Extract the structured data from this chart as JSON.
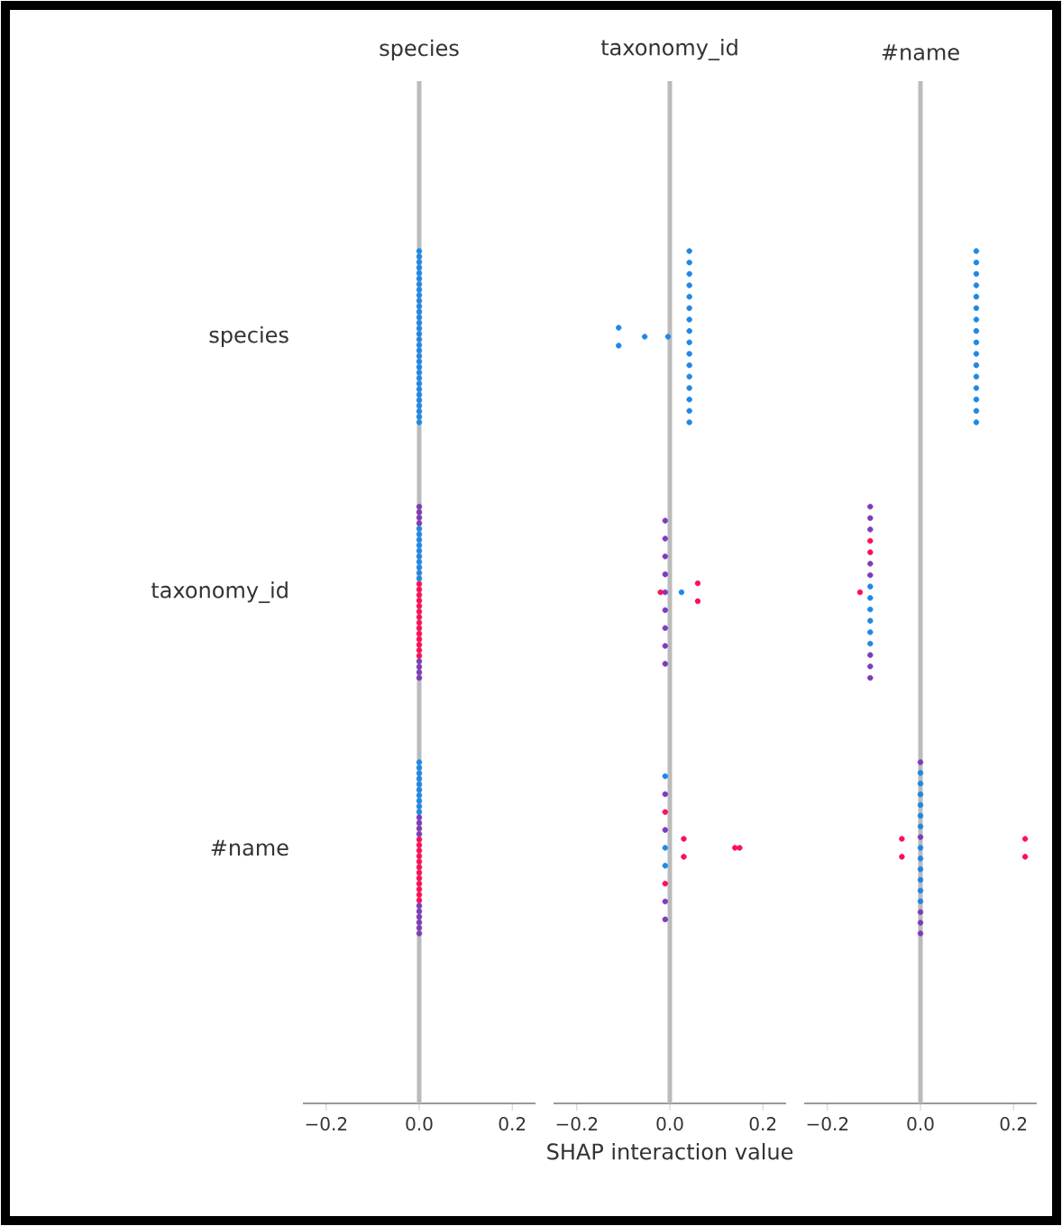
{
  "chart_data": [
    {
      "type": "scatter",
      "orientation": "horizontal",
      "title": "species",
      "categories": [
        "species",
        "taxonomy_id",
        "#name"
      ],
      "xlim": [
        -0.25,
        0.25
      ],
      "xticks": [
        {
          "value": -0.2,
          "label": "−0.2"
        },
        {
          "value": 0,
          "label": "0.0"
        },
        {
          "value": 0.2,
          "label": "0.2"
        }
      ],
      "marker": "circle",
      "ref_lines": [
        {
          "axis": "x",
          "value": 0,
          "color": "#bbbbbb"
        }
      ],
      "series": [
        {
          "x": [
            "species",
            "species",
            "species",
            "species",
            "species",
            "species",
            "species",
            "species",
            "species",
            "species",
            "species",
            "species",
            "species",
            "species",
            "species",
            "species",
            "species",
            "species",
            "species",
            "species",
            "species",
            "species",
            "species",
            "species",
            "species",
            "species",
            "species",
            "species",
            "species",
            "species",
            "species",
            "species",
            "taxonomy_id",
            "taxonomy_id",
            "taxonomy_id",
            "taxonomy_id",
            "taxonomy_id",
            "taxonomy_id",
            "taxonomy_id",
            "taxonomy_id",
            "taxonomy_id",
            "taxonomy_id",
            "taxonomy_id",
            "taxonomy_id",
            "taxonomy_id",
            "taxonomy_id",
            "taxonomy_id",
            "taxonomy_id",
            "taxonomy_id",
            "taxonomy_id",
            "taxonomy_id",
            "taxonomy_id",
            "taxonomy_id",
            "taxonomy_id",
            "taxonomy_id",
            "taxonomy_id",
            "taxonomy_id",
            "taxonomy_id",
            "taxonomy_id",
            "taxonomy_id",
            "taxonomy_id",
            "taxonomy_id",
            "taxonomy_id",
            "taxonomy_id",
            "#name",
            "#name",
            "#name",
            "#name",
            "#name",
            "#name",
            "#name",
            "#name",
            "#name",
            "#name",
            "#name",
            "#name",
            "#name",
            "#name",
            "#name",
            "#name",
            "#name",
            "#name",
            "#name",
            "#name",
            "#name",
            "#name",
            "#name",
            "#name",
            "#name",
            "#name",
            "#name",
            "#name",
            "#name",
            "#name",
            "#name",
            "#name"
          ],
          "values": [
            0,
            0,
            0,
            0,
            0,
            0,
            0,
            0,
            0,
            0,
            0,
            0,
            0,
            0,
            0,
            0,
            0,
            0,
            0,
            0,
            0,
            0,
            0,
            0,
            0,
            0,
            0,
            0,
            0,
            0,
            0,
            0,
            0,
            0,
            0,
            0,
            0,
            0,
            0,
            0,
            0,
            0,
            0,
            0,
            0,
            0,
            0,
            0,
            0,
            0,
            0,
            0,
            0,
            0,
            0,
            0,
            0,
            0,
            0,
            0,
            0,
            0,
            0,
            0,
            0,
            0,
            0,
            0,
            0,
            0,
            0,
            0,
            0,
            0,
            0,
            0,
            0,
            0,
            0,
            0,
            0,
            0,
            0,
            0,
            0,
            0,
            0,
            0,
            0,
            0,
            0,
            0,
            0,
            0,
            0,
            0
          ],
          "colors": [
            "#1e88e5",
            "#1e88e5",
            "#1e88e5",
            "#1e88e5",
            "#1e88e5",
            "#1e88e5",
            "#1e88e5",
            "#1e88e5",
            "#1e88e5",
            "#1e88e5",
            "#1e88e5",
            "#1e88e5",
            "#1e88e5",
            "#1e88e5",
            "#1e88e5",
            "#1e88e5",
            "#1e88e5",
            "#1e88e5",
            "#1e88e5",
            "#1e88e5",
            "#1e88e5",
            "#1e88e5",
            "#1e88e5",
            "#1e88e5",
            "#1e88e5",
            "#1e88e5",
            "#1e88e5",
            "#1e88e5",
            "#1e88e5",
            "#1e88e5",
            "#1e88e5",
            "#1e88e5",
            "#7e3bb8",
            "#7e3bb8",
            "#7e3bb8",
            "#7e3bb8",
            "#1e88e5",
            "#1e88e5",
            "#1e88e5",
            "#1e88e5",
            "#1e88e5",
            "#1e88e5",
            "#1e88e5",
            "#1e88e5",
            "#1e88e5",
            "#1e88e5",
            "#ff0d57",
            "#ff0d57",
            "#ff0d57",
            "#ff0d57",
            "#ff0d57",
            "#ff0d57",
            "#ff0d57",
            "#ff0d57",
            "#ff0d57",
            "#ff0d57",
            "#ff0d57",
            "#ff0d57",
            "#ff0d57",
            "#ff0d57",
            "#7e3bb8",
            "#7e3bb8",
            "#7e3bb8",
            "#7e3bb8",
            "#1e88e5",
            "#1e88e5",
            "#1e88e5",
            "#1e88e5",
            "#1e88e5",
            "#1e88e5",
            "#1e88e5",
            "#1e88e5",
            "#1e88e5",
            "#1e88e5",
            "#7e3bb8",
            "#7e3bb8",
            "#7e3bb8",
            "#7e3bb8",
            "#ff0d57",
            "#ff0d57",
            "#ff0d57",
            "#ff0d57",
            "#ff0d57",
            "#ff0d57",
            "#ff0d57",
            "#ff0d57",
            "#ff0d57",
            "#ff0d57",
            "#ff0d57",
            "#ff0d57",
            "#7e3bb8",
            "#7e3bb8",
            "#7e3bb8",
            "#7e3bb8",
            "#7e3bb8",
            "#7e3bb8"
          ]
        }
      ]
    },
    {
      "type": "scatter",
      "orientation": "horizontal",
      "title": "taxonomy_id",
      "xlabel": "SHAP interaction value",
      "categories": [
        "species",
        "taxonomy_id",
        "#name"
      ],
      "xlim": [
        -0.25,
        0.25
      ],
      "xticks": [
        {
          "value": -0.2,
          "label": "−0.2"
        },
        {
          "value": 0,
          "label": "0.0"
        },
        {
          "value": 0.2,
          "label": "0.2"
        }
      ],
      "tick_labels": "x",
      "marker": "circle",
      "ref_lines": [
        {
          "axis": "x",
          "value": 0,
          "color": "#bbbbbb"
        }
      ],
      "series": [
        {
          "x": [
            "species",
            "species",
            "species",
            "species",
            "species",
            "species",
            "species",
            "species",
            "species",
            "species",
            "species",
            "species",
            "species",
            "species",
            "species",
            "species",
            "species",
            "species",
            "species",
            "species",
            "taxonomy_id",
            "taxonomy_id",
            "taxonomy_id",
            "taxonomy_id",
            "taxonomy_id",
            "taxonomy_id",
            "taxonomy_id",
            "taxonomy_id",
            "taxonomy_id",
            "taxonomy_id",
            "taxonomy_id",
            "taxonomy_id",
            "taxonomy_id",
            "#name",
            "#name",
            "#name",
            "#name",
            "#name",
            "#name",
            "#name",
            "#name",
            "#name",
            "#name",
            "#name",
            "#name",
            "#name"
          ],
          "values": [
            -0.11,
            -0.11,
            -0.054,
            -0.004,
            0.042,
            0.042,
            0.042,
            0.042,
            0.042,
            0.042,
            0.042,
            0.042,
            0.042,
            0.042,
            0.042,
            0.042,
            0.042,
            0.042,
            0.042,
            0.042,
            -0.01,
            -0.01,
            -0.01,
            -0.01,
            -0.01,
            -0.01,
            -0.01,
            -0.01,
            -0.01,
            -0.02,
            0.025,
            0.06,
            0.06,
            -0.01,
            -0.01,
            -0.01,
            -0.01,
            -0.01,
            -0.01,
            -0.01,
            -0.01,
            -0.01,
            0.03,
            0.03,
            0.14,
            0.15
          ],
          "colors": [
            "#1e88e5",
            "#1e88e5",
            "#1e88e5",
            "#1e88e5",
            "#1e88e5",
            "#1e88e5",
            "#1e88e5",
            "#1e88e5",
            "#1e88e5",
            "#1e88e5",
            "#1e88e5",
            "#1e88e5",
            "#1e88e5",
            "#1e88e5",
            "#1e88e5",
            "#1e88e5",
            "#1e88e5",
            "#1e88e5",
            "#1e88e5",
            "#1e88e5",
            "#7e3bb8",
            "#7e3bb8",
            "#7e3bb8",
            "#7e3bb8",
            "#7e3bb8",
            "#7e3bb8",
            "#7e3bb8",
            "#7e3bb8",
            "#7e3bb8",
            "#ff0d57",
            "#1e88e5",
            "#ff0d57",
            "#ff0d57",
            "#1e88e5",
            "#7e3bb8",
            "#ff0d57",
            "#7e3bb8",
            "#1e88e5",
            "#1e88e5",
            "#ff0d57",
            "#7e3bb8",
            "#7e3bb8",
            "#ff0d57",
            "#ff0d57",
            "#ff0d57",
            "#ff0d57"
          ]
        }
      ]
    },
    {
      "type": "scatter",
      "orientation": "horizontal",
      "title": "#name",
      "categories": [
        "species",
        "taxonomy_id",
        "#name"
      ],
      "xlim": [
        -0.25,
        0.25
      ],
      "xticks": [
        {
          "value": -0.2,
          "label": "−0.2"
        },
        {
          "value": 0,
          "label": "0.0"
        },
        {
          "value": 0.2,
          "label": "0.2"
        }
      ],
      "tick_labels": "x",
      "marker": "circle",
      "ref_lines": [
        {
          "axis": "x",
          "value": 0,
          "color": "#bbbbbb"
        }
      ],
      "series": [
        {
          "x": [
            "species",
            "species",
            "species",
            "species",
            "species",
            "species",
            "species",
            "species",
            "species",
            "species",
            "species",
            "species",
            "species",
            "species",
            "species",
            "species",
            "taxonomy_id",
            "taxonomy_id",
            "taxonomy_id",
            "taxonomy_id",
            "taxonomy_id",
            "taxonomy_id",
            "taxonomy_id",
            "taxonomy_id",
            "taxonomy_id",
            "taxonomy_id",
            "taxonomy_id",
            "taxonomy_id",
            "taxonomy_id",
            "taxonomy_id",
            "taxonomy_id",
            "taxonomy_id",
            "taxonomy_id",
            "#name",
            "#name",
            "#name",
            "#name",
            "#name",
            "#name",
            "#name",
            "#name",
            "#name",
            "#name",
            "#name",
            "#name",
            "#name",
            "#name",
            "#name",
            "#name",
            "#name",
            "#name",
            "#name",
            "#name",
            "#name"
          ],
          "values": [
            0.12,
            0.12,
            0.12,
            0.12,
            0.12,
            0.12,
            0.12,
            0.12,
            0.12,
            0.12,
            0.12,
            0.12,
            0.12,
            0.12,
            0.12,
            0.12,
            -0.108,
            -0.108,
            -0.108,
            -0.108,
            -0.108,
            -0.108,
            -0.108,
            -0.108,
            -0.108,
            -0.108,
            -0.108,
            -0.108,
            -0.108,
            -0.108,
            -0.108,
            -0.108,
            -0.13,
            0,
            0,
            0,
            0,
            0,
            0,
            0,
            0,
            0,
            0,
            0,
            0,
            0,
            0,
            0,
            0,
            0,
            -0.04,
            -0.04,
            0.225,
            0.225
          ],
          "colors": [
            "#1e88e5",
            "#1e88e5",
            "#1e88e5",
            "#1e88e5",
            "#1e88e5",
            "#1e88e5",
            "#1e88e5",
            "#1e88e5",
            "#1e88e5",
            "#1e88e5",
            "#1e88e5",
            "#1e88e5",
            "#1e88e5",
            "#1e88e5",
            "#1e88e5",
            "#1e88e5",
            "#7e3bb8",
            "#7e3bb8",
            "#7e3bb8",
            "#ff0d57",
            "#ff0d57",
            "#7e3bb8",
            "#7e3bb8",
            "#1e88e5",
            "#1e88e5",
            "#1e88e5",
            "#1e88e5",
            "#1e88e5",
            "#1e88e5",
            "#7e3bb8",
            "#7e3bb8",
            "#7e3bb8",
            "#ff0d57",
            "#7e3bb8",
            "#1e88e5",
            "#1e88e5",
            "#1e88e5",
            "#1e88e5",
            "#1e88e5",
            "#1e88e5",
            "#7e3bb8",
            "#1e88e5",
            "#1e88e5",
            "#1e88e5",
            "#1e88e5",
            "#1e88e5",
            "#1e88e5",
            "#7e3bb8",
            "#7e3bb8",
            "#7e3bb8",
            "#ff0d57",
            "#ff0d57",
            "#ff0d57",
            "#ff0d57"
          ]
        }
      ]
    }
  ]
}
